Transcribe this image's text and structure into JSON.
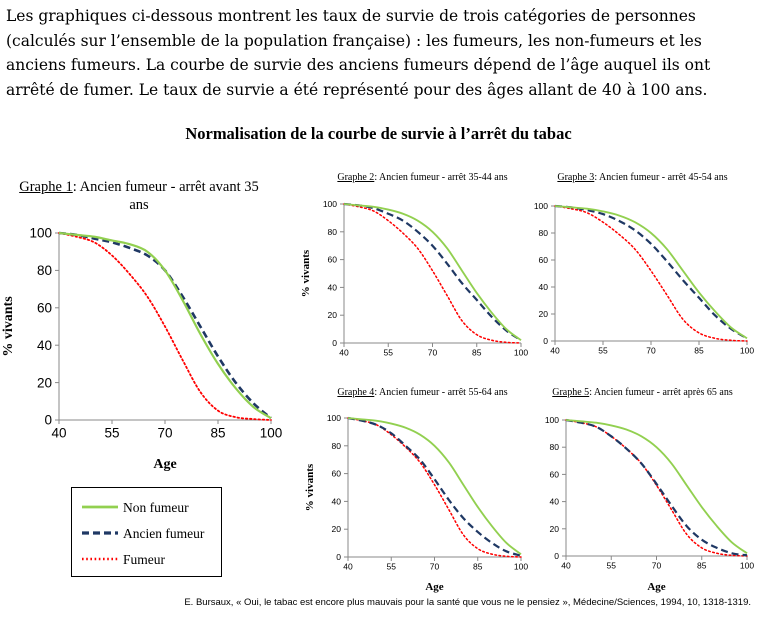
{
  "intro": "Les graphiques ci-dessous montrent les taux de survie de trois catégories de personnes (calculés sur l’ensemble de la population française) : les fumeurs, les non-fumeurs et les anciens fumeurs. La courbe de survie des anciens fumeurs dépend de l’âge auquel ils ont arrêté de fumer. Le taux de survie a été représenté pour des âges allant de 40 à 100 ans.",
  "main_title": "Normalisation de la courbe de survie à l’arrêt du tabac",
  "source": "E. Bursaux, « Oui, le tabac est encore plus mauvais pour la santé que vous ne le pensiez », Médecine/Sciences, 1994, 10, 1318-1319.",
  "legend": {
    "items": [
      {
        "label": "Non fumeur",
        "color": "#92d050",
        "style": "solid"
      },
      {
        "label": "Ancien fumeur",
        "color": "#1f3864",
        "style": "dashed"
      },
      {
        "label": "Fumeur",
        "color": "#ff0000",
        "style": "dotted"
      }
    ]
  },
  "chart_data": [
    {
      "type": "line",
      "title_label": "Graphe 1",
      "title_text": ": Ancien fumeur - arrêt avant 35 ans",
      "xlabel": "Age",
      "ylabel": "% vivants",
      "xlim": [
        40,
        100
      ],
      "ylim": [
        0,
        100
      ],
      "xticks": [
        40,
        55,
        70,
        85,
        100
      ],
      "yticks": [
        0,
        20,
        40,
        60,
        80,
        100
      ],
      "x": [
        40,
        45,
        50,
        55,
        60,
        65,
        70,
        75,
        80,
        85,
        90,
        95,
        100
      ],
      "series": [
        {
          "name": "Non fumeur",
          "values": [
            100,
            99,
            98,
            96,
            94,
            90,
            80,
            64,
            46,
            30,
            17,
            7,
            1
          ]
        },
        {
          "name": "Ancien fumeur",
          "values": [
            100,
            99,
            97,
            95,
            92,
            88,
            80,
            66,
            50,
            34,
            20,
            9,
            1
          ]
        },
        {
          "name": "Fumeur",
          "values": [
            100,
            98,
            95,
            88,
            78,
            66,
            50,
            32,
            15,
            5,
            1.5,
            0.5,
            0
          ]
        }
      ]
    },
    {
      "type": "line",
      "title_label": "Graphe 2",
      "title_text": ": Ancien fumeur - arrêt 35-44 ans",
      "xlabel": "",
      "ylabel": "% vivants",
      "xlim": [
        40,
        100
      ],
      "ylim": [
        0,
        100
      ],
      "xticks": [
        40,
        55,
        70,
        85,
        100
      ],
      "yticks": [
        0,
        20,
        40,
        60,
        80,
        100
      ],
      "x": [
        40,
        45,
        50,
        55,
        60,
        65,
        70,
        75,
        80,
        85,
        90,
        95,
        100
      ],
      "series": [
        {
          "name": "Non fumeur",
          "values": [
            100,
            99,
            98,
            96,
            93,
            88,
            80,
            68,
            52,
            36,
            22,
            10,
            2
          ]
        },
        {
          "name": "Ancien fumeur",
          "values": [
            100,
            99,
            97,
            93,
            88,
            80,
            70,
            57,
            43,
            31,
            19,
            9,
            2
          ]
        },
        {
          "name": "Fumeur",
          "values": [
            100,
            98,
            95,
            88,
            79,
            68,
            52,
            34,
            16,
            6,
            2,
            0.5,
            0
          ]
        }
      ]
    },
    {
      "type": "line",
      "title_label": "Graphe 3",
      "title_text": ": Ancien fumeur - arrêt 45-54 ans",
      "xlabel": "",
      "ylabel": "",
      "xlim": [
        40,
        100
      ],
      "ylim": [
        0,
        100
      ],
      "xticks": [
        40,
        55,
        70,
        85,
        100
      ],
      "yticks": [
        0,
        20,
        40,
        60,
        80,
        100
      ],
      "x": [
        40,
        45,
        50,
        55,
        60,
        65,
        70,
        75,
        80,
        85,
        90,
        95,
        100
      ],
      "series": [
        {
          "name": "Non fumeur",
          "values": [
            100,
            99,
            98,
            96,
            93,
            88,
            80,
            68,
            52,
            36,
            22,
            10,
            2
          ]
        },
        {
          "name": "Ancien fumeur",
          "values": [
            100,
            99,
            97,
            94,
            89,
            82,
            72,
            59,
            45,
            32,
            19,
            9,
            2
          ]
        },
        {
          "name": "Fumeur",
          "values": [
            100,
            98,
            95,
            88,
            79,
            68,
            52,
            34,
            16,
            6,
            2,
            0.5,
            0
          ]
        }
      ]
    },
    {
      "type": "line",
      "title_label": "Graphe 4",
      "title_text": ": Ancien fumeur - arrêt 55-64 ans",
      "xlabel": "Age",
      "ylabel": "% vivants",
      "xlim": [
        40,
        100
      ],
      "ylim": [
        0,
        100
      ],
      "xticks": [
        40,
        55,
        70,
        85,
        100
      ],
      "yticks": [
        0,
        20,
        40,
        60,
        80,
        100
      ],
      "x": [
        40,
        45,
        50,
        55,
        60,
        65,
        70,
        75,
        80,
        85,
        90,
        95,
        100
      ],
      "series": [
        {
          "name": "Non fumeur",
          "values": [
            100,
            99,
            98,
            96,
            93,
            88,
            80,
            68,
            52,
            36,
            22,
            10,
            2
          ]
        },
        {
          "name": "Ancien fumeur",
          "values": [
            100,
            98,
            95,
            89,
            80,
            70,
            56,
            41,
            28,
            18,
            10,
            4,
            1
          ]
        },
        {
          "name": "Fumeur",
          "values": [
            100,
            98,
            95,
            88,
            79,
            68,
            52,
            34,
            16,
            6,
            2,
            0.5,
            0
          ]
        }
      ]
    },
    {
      "type": "line",
      "title_label": "Graphe 5",
      "title_text": ": Ancien fumeur - arrêt après 65 ans",
      "xlabel": "Age",
      "ylabel": "",
      "xlim": [
        40,
        100
      ],
      "ylim": [
        0,
        100
      ],
      "xticks": [
        40,
        55,
        70,
        85,
        100
      ],
      "yticks": [
        0,
        20,
        40,
        60,
        80,
        100
      ],
      "x": [
        40,
        45,
        50,
        55,
        60,
        65,
        70,
        75,
        80,
        85,
        90,
        95,
        100
      ],
      "series": [
        {
          "name": "Non fumeur",
          "values": [
            100,
            99,
            98,
            96,
            93,
            88,
            80,
            68,
            52,
            36,
            22,
            10,
            2
          ]
        },
        {
          "name": "Ancien fumeur",
          "values": [
            100,
            98,
            95,
            88,
            79,
            68,
            53,
            37,
            22,
            12,
            6,
            2,
            0.5
          ]
        },
        {
          "name": "Fumeur",
          "values": [
            100,
            98,
            95,
            88,
            79,
            68,
            52,
            34,
            16,
            6,
            2,
            0.5,
            0
          ]
        }
      ]
    }
  ]
}
